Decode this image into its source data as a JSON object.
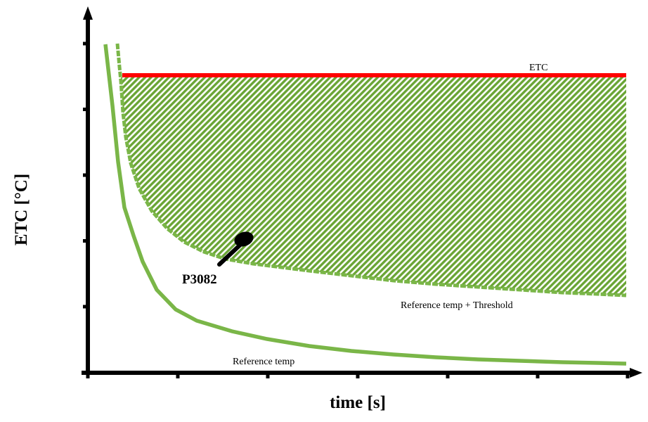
{
  "diagram": {
    "x_axis_label": "time [s]",
    "y_axis_label": "ETC [°C]",
    "colors": {
      "etc_line": "#ff0000",
      "reference_curves": "#7ab648",
      "fault_region_fill": "#6aa535",
      "axis": "#000000"
    },
    "curves": {
      "etc": "ETC",
      "threshold": "Reference temp + Threshold",
      "reference": "Reference temp"
    },
    "fault_region_code": "P3082",
    "x_ticks": 7,
    "y_ticks": 5
  }
}
